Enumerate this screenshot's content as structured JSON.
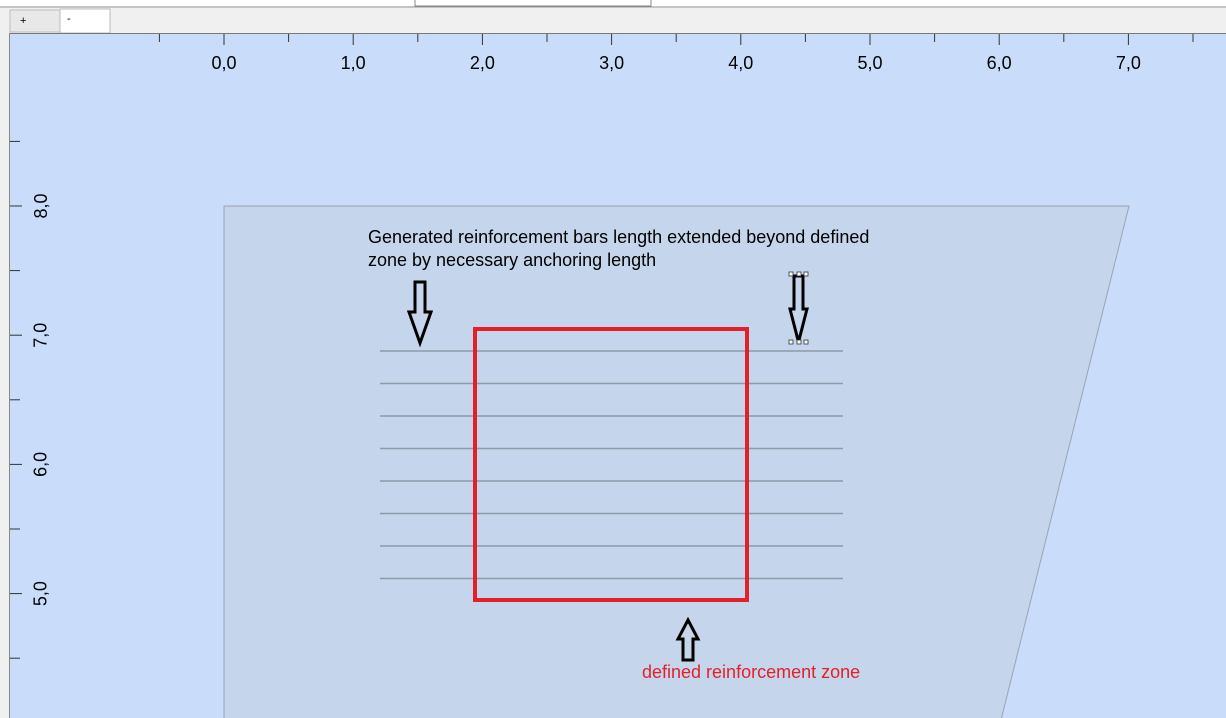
{
  "tabs": [
    "+",
    "-"
  ],
  "ruler": {
    "x_labels": [
      "0,0",
      "1,0",
      "2,0",
      "3,0",
      "4,0",
      "5,0",
      "6,0",
      "7,0"
    ],
    "y_labels": [
      "8,0",
      "7,0",
      "6,0",
      "5,0"
    ]
  },
  "annotations": {
    "bars_note": [
      "Generated reinforcement bars length extended beyond defined",
      "zone by necessary anchoring length"
    ],
    "zone_label": "defined reinforcement zone"
  }
}
